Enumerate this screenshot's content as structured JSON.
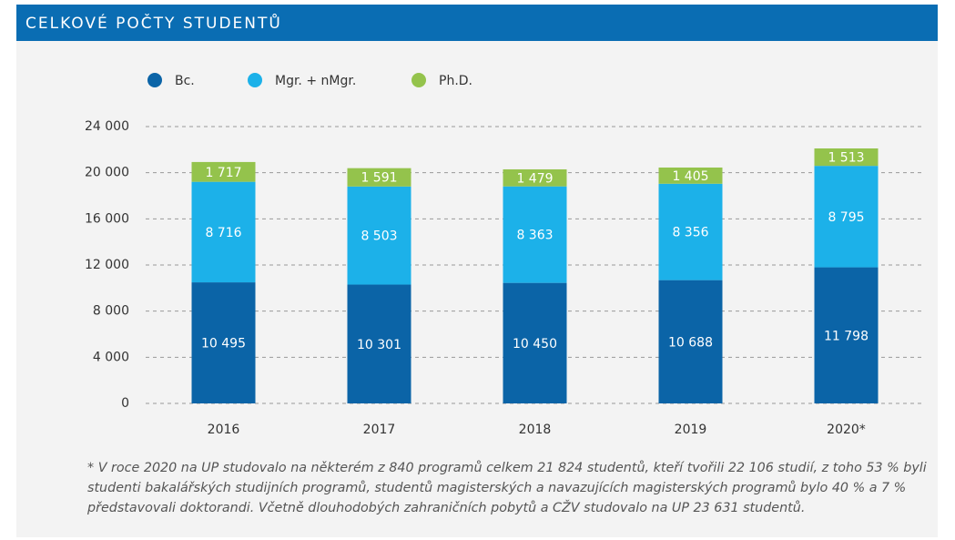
{
  "chart_data": {
    "type": "stacked_bar",
    "title": "CELKOVÉ POČTY STUDENTŮ",
    "categories": [
      "2016",
      "2017",
      "2018",
      "2019",
      "2020*"
    ],
    "series": [
      {
        "name": "Bc.",
        "color": "#0b64a7",
        "values": [
          10495,
          10301,
          10450,
          10688,
          11798
        ],
        "value_labels": [
          "10 495",
          "10 301",
          "10 450",
          "10 688",
          "11 798"
        ]
      },
      {
        "name": "Mgr. + nMgr.",
        "color": "#1cb1e9",
        "values": [
          8716,
          8503,
          8363,
          8356,
          8795
        ],
        "value_labels": [
          "8 716",
          "8 503",
          "8 363",
          "8 356",
          "8 795"
        ]
      },
      {
        "name": "Ph.D.",
        "color": "#94c34c",
        "values": [
          1717,
          1591,
          1479,
          1405,
          1513
        ],
        "value_labels": [
          "1 717",
          "1 591",
          "1 479",
          "1 405",
          "1 513"
        ]
      }
    ],
    "ylim": [
      0,
      24000
    ],
    "yticks": [
      0,
      {
        "value": 4000,
        "label": "4 000"
      },
      {
        "value": 8000,
        "label": "8 000"
      },
      {
        "value": 12000,
        "label": "12 000"
      },
      {
        "value": 16000,
        "label": "16 000"
      },
      {
        "value": 20000,
        "label": "20 000"
      },
      {
        "value": 24000,
        "label": "24 000"
      }
    ],
    "grid": true,
    "legend": "top",
    "footnote": "* V roce 2020 na UP studovalo na některém z 840 programů celkem 21 824 studentů, kteří tvořili 22 106 studií, z toho 53 % byli studenti bakalářských studijních programů, studentů magisterských a navazujících magisterských programů bylo 40 % a 7 % představovali doktorandi. Včetně dlouhodobých zahraničních pobytů a CŽV studovalo na UP 23 631 studentů."
  }
}
